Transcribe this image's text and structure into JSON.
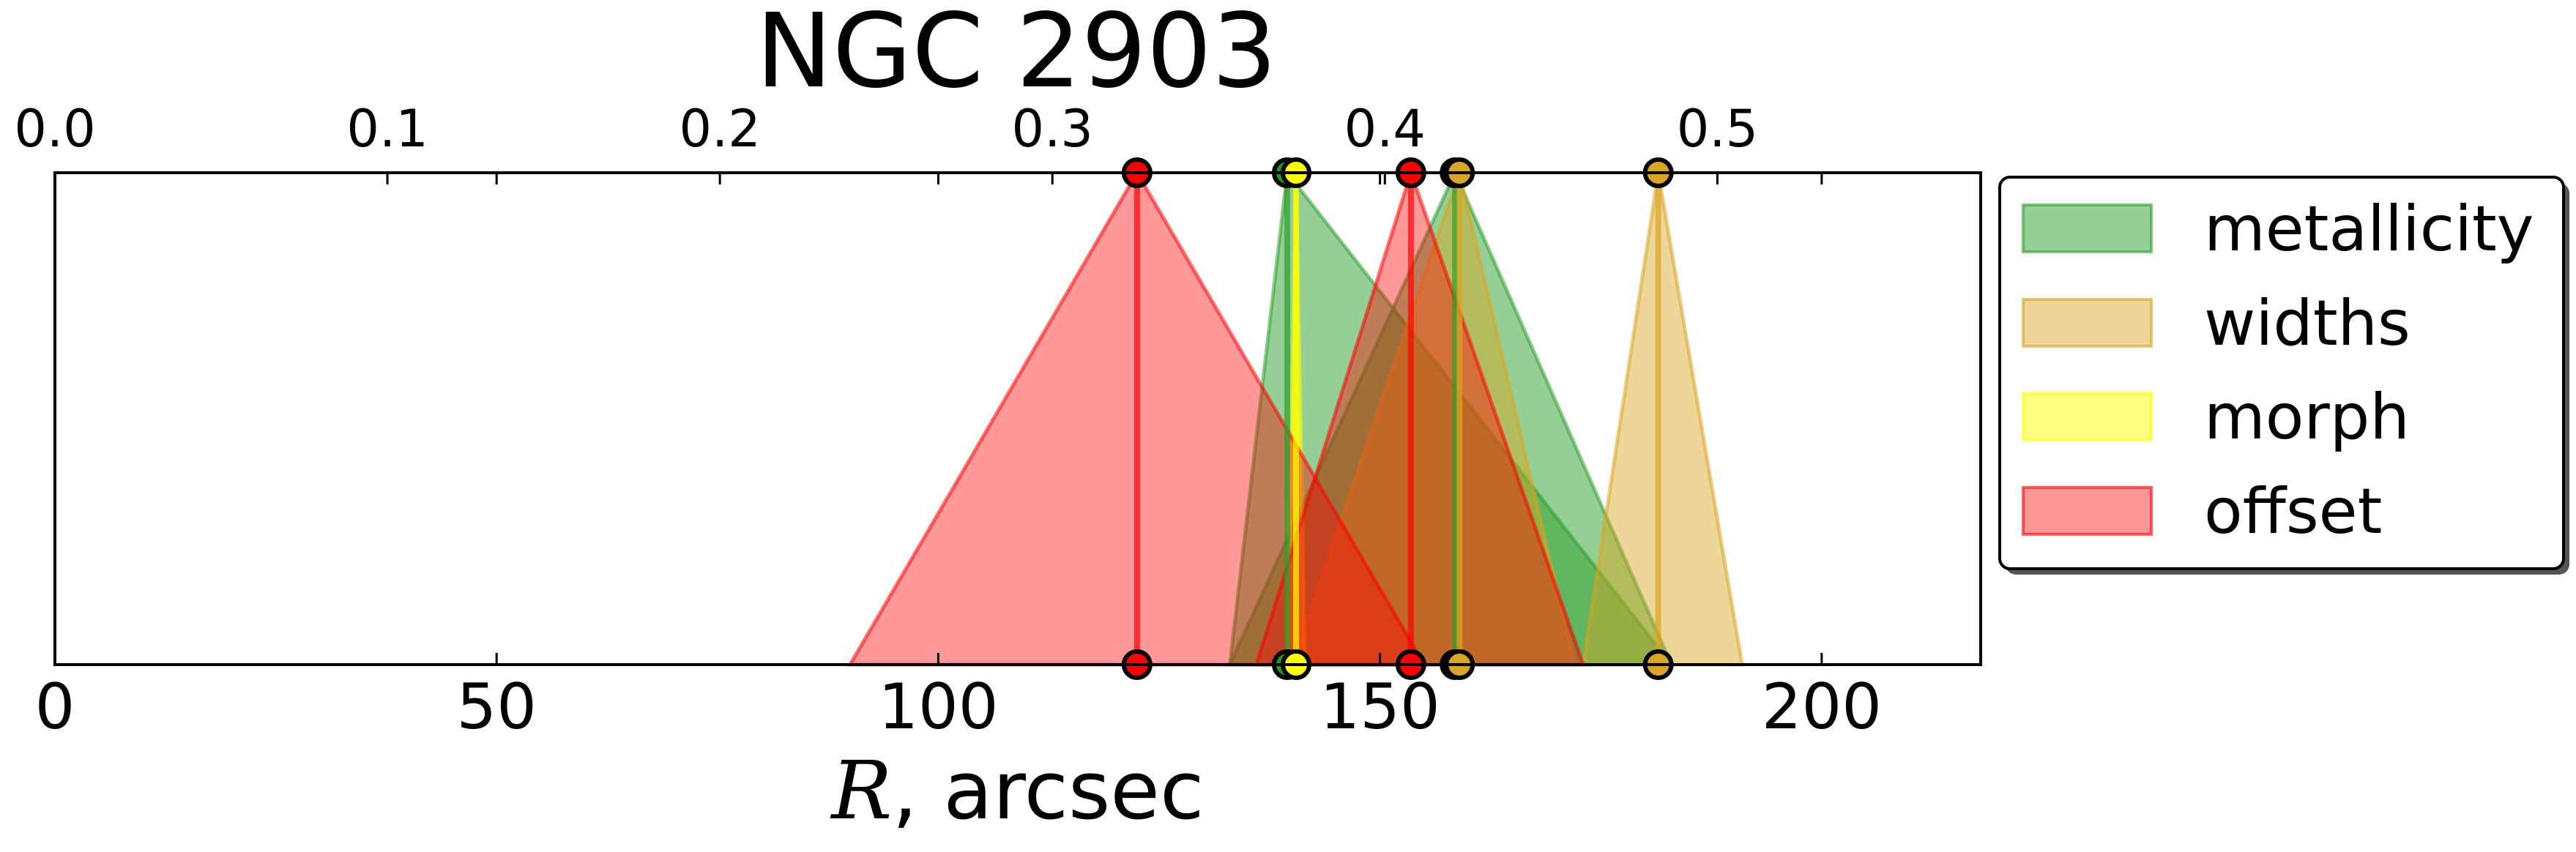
{
  "chart_data": {
    "type": "area",
    "title": "NGC 2903",
    "xlabel_symbol": "R",
    "xlabel_rest": ", arcsec",
    "xlim": [
      0,
      218
    ],
    "xticks": [
      0,
      50,
      100,
      150,
      200
    ],
    "top_axis": {
      "xlim": [
        0,
        0.5792
      ],
      "ticks": [
        0.0,
        0.1,
        0.2,
        0.3,
        0.4,
        0.5
      ],
      "tick_labels": [
        "0.0",
        "0.1",
        "0.2",
        "0.3",
        "0.4",
        "0.5"
      ]
    },
    "legend_position": "right",
    "series": [
      {
        "name": "metallicity",
        "color": "#2ca02c",
        "marker_color": "#1f9a1f",
        "fill_opacity": 0.5,
        "intervals": [
          {
            "center": 139.5,
            "left": 133.0,
            "right": 183.0
          },
          {
            "center": 158.5,
            "left": 133.0,
            "right": 183.0
          }
        ]
      },
      {
        "name": "widths",
        "color": "#daa520",
        "marker_color": "#daa520",
        "fill_opacity": 0.45,
        "intervals": [
          {
            "center": 159.0,
            "left": 140.0,
            "right": 172.0
          },
          {
            "center": 181.5,
            "left": 173.0,
            "right": 191.0
          }
        ]
      },
      {
        "name": "morph",
        "color": "#ffff00",
        "marker_color": "#ffff00",
        "fill_opacity": 0.5,
        "intervals": [
          {
            "center": 140.5,
            "left": 139.5,
            "right": 141.5
          }
        ]
      },
      {
        "name": "offset",
        "color": "#ff0000",
        "marker_color": "#ff0000",
        "fill_opacity": 0.4,
        "intervals": [
          {
            "center": 122.5,
            "left": 90.0,
            "right": 155.0
          },
          {
            "center": 153.5,
            "left": 136.0,
            "right": 173.0
          }
        ]
      }
    ]
  }
}
